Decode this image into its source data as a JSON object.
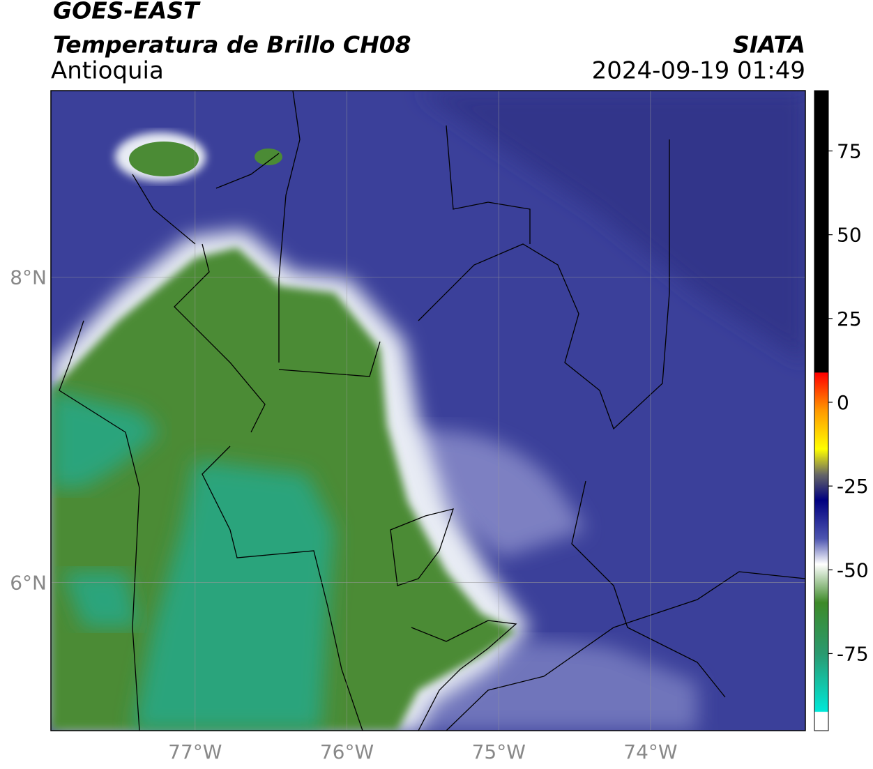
{
  "header": {
    "title": "GOES-EAST",
    "subtitle": "Temperatura de Brillo CH08",
    "region": "Antioquia",
    "source": "SIATA",
    "datetime": "2024-09-19 01:49"
  },
  "map": {
    "xlim": [
      -77.95,
      -72.98
    ],
    "ylim": [
      5.03,
      9.22
    ],
    "xticks": [
      {
        "value": -77,
        "label": "77°W"
      },
      {
        "value": -76,
        "label": "76°W"
      },
      {
        "value": -75,
        "label": "75°W"
      },
      {
        "value": -74,
        "label": "74°W"
      }
    ],
    "yticks": [
      {
        "value": 8,
        "label": "8°N"
      },
      {
        "value": 6,
        "label": "6°N"
      }
    ],
    "grid": true
  },
  "colorbar": {
    "lim": [
      -98,
      93
    ],
    "ticks": [
      75,
      50,
      25,
      0,
      -25,
      -50,
      -75
    ]
  }
}
